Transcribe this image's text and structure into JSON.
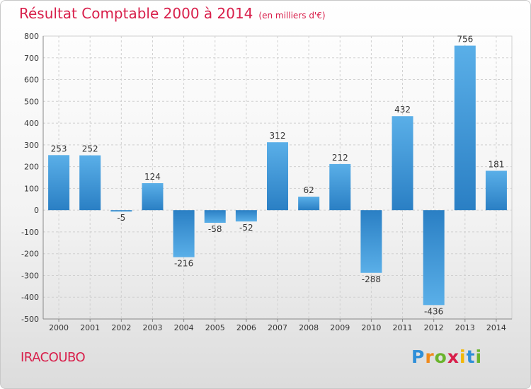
{
  "chart_data": {
    "type": "bar",
    "title": "Résultat Comptable 2000 à 2014",
    "subtitle": "(en milliers d'€)",
    "categories": [
      "2000",
      "2001",
      "2002",
      "2003",
      "2004",
      "2005",
      "2006",
      "2007",
      "2008",
      "2009",
      "2010",
      "2011",
      "2012",
      "2013",
      "2014"
    ],
    "values": [
      253,
      252,
      -5,
      124,
      -216,
      -58,
      -52,
      312,
      62,
      212,
      -288,
      432,
      -436,
      756,
      181
    ],
    "ylim": [
      -500,
      800
    ],
    "yticks": [
      800,
      700,
      600,
      500,
      400,
      300,
      200,
      100,
      0,
      -100,
      -200,
      -300,
      -400,
      -500
    ],
    "grid": true,
    "bar_color": "#4a9fdc"
  },
  "place_name": "IRACOUBO",
  "logo": {
    "text": "Proxiti",
    "letters": [
      "P",
      "r",
      "o",
      "x",
      "i",
      "t",
      "i"
    ],
    "colors": [
      "#2f8fd8",
      "#f08a1c",
      "#6ab42d",
      "#d81e4a",
      "#f2b705",
      "#2f8fd8",
      "#6ab42d"
    ]
  }
}
